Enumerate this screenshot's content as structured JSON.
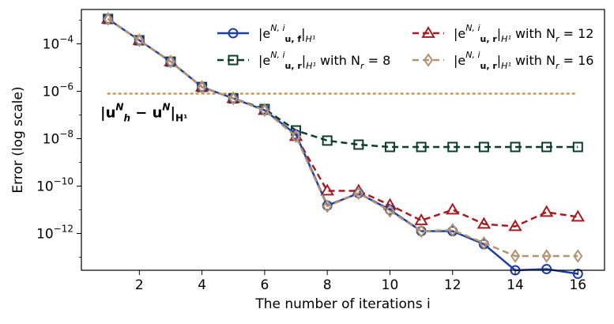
{
  "chart_data": {
    "type": "line",
    "title": "",
    "xlabel": "The number of iterations i",
    "ylabel": "Error (log scale)",
    "yscale": "log",
    "xlim": [
      0.15,
      16.85
    ],
    "ylim_log10": [
      -13.55,
      -2.55
    ],
    "xticks": [
      2,
      4,
      6,
      8,
      10,
      12,
      14,
      16
    ],
    "yticks": [
      {
        "value_log10": -4,
        "base": "10",
        "exp": "−4"
      },
      {
        "value_log10": -6,
        "base": "10",
        "exp": "−6"
      },
      {
        "value_log10": -8,
        "base": "10",
        "exp": "−8"
      },
      {
        "value_log10": -10,
        "base": "10",
        "exp": "−10"
      },
      {
        "value_log10": -12,
        "base": "10",
        "exp": "−12"
      }
    ],
    "x": [
      1,
      2,
      3,
      4,
      5,
      6,
      7,
      8,
      9,
      10,
      11,
      12,
      13,
      14,
      15,
      16
    ],
    "series": [
      {
        "name": "|e_u,f^{N,i}|_{H^1}",
        "legend": {
          "main": "|e",
          "sup": "N, i",
          "sub": "u, f",
          "tail": "|",
          "tailsub": "H¹",
          "suffix": ""
        },
        "color": "#1f3fa0",
        "dash": "",
        "marker": "circle",
        "values_log10": [
          -2.95,
          -3.85,
          -4.75,
          -5.82,
          -6.3,
          -6.8,
          -7.82,
          -10.82,
          -10.3,
          -11.0,
          -11.9,
          -11.9,
          -12.45,
          -13.55,
          -13.5,
          -13.7
        ]
      },
      {
        "name": "|e_u,r^{N,i}|_{H^1} with N_r = 8",
        "legend": {
          "main": "|e",
          "sup": "N, i",
          "sub": "u, r",
          "tail": "|",
          "tailsub": "H¹",
          "suffix": " with N",
          "suffixsub": "r",
          "suffixtail": " = 8"
        },
        "color": "#0d3d2a",
        "dash": "8,5",
        "marker": "square",
        "values_log10": [
          -2.95,
          -3.85,
          -4.75,
          -5.82,
          -6.3,
          -6.75,
          -7.65,
          -8.08,
          -8.25,
          -8.35,
          -8.35,
          -8.35,
          -8.35,
          -8.35,
          -8.35,
          -8.35
        ]
      },
      {
        "name": "|e_u,r^{N,i}|_{H^1} with N_r = 12",
        "legend": {
          "main": "|e",
          "sup": "N, i",
          "sub": "u, r",
          "tail": "|",
          "tailsub": "H¹",
          "suffix": " with N",
          "suffixsub": "r",
          "suffixtail": " = 12"
        },
        "color": "#a31c22",
        "dash": "8,5",
        "marker": "triangle",
        "values_log10": [
          -2.95,
          -3.85,
          -4.75,
          -5.82,
          -6.3,
          -6.8,
          -7.9,
          -10.2,
          -10.2,
          -10.8,
          -11.45,
          -11.0,
          -11.6,
          -11.7,
          -11.1,
          -11.3
        ]
      },
      {
        "name": "|e_u,r^{N,i}|_{H^1} with N_r = 16",
        "legend": {
          "main": "|e",
          "sup": "N, i",
          "sub": "u, r",
          "tail": "|",
          "tailsub": "H¹",
          "suffix": " with N",
          "suffixsub": "r",
          "suffixtail": " = 16"
        },
        "color": "#b29473",
        "dash": "8,5",
        "marker": "diamond",
        "values_log10": [
          -2.95,
          -3.85,
          -4.75,
          -5.82,
          -6.3,
          -6.8,
          -7.9,
          -10.85,
          -10.3,
          -11.05,
          -11.9,
          -11.85,
          -12.4,
          -12.95,
          -12.95,
          -12.95
        ]
      }
    ],
    "reference_line": {
      "label_main": "|u",
      "label_sup": "N",
      "label_sub": "h",
      "label_mid": " − u",
      "label_sup2": "N",
      "label_tail": "|",
      "label_tailsub": "H¹",
      "value_log10": -6.1,
      "color": "#c8955a",
      "dash": "2,5"
    },
    "legend_position": "top-right"
  }
}
